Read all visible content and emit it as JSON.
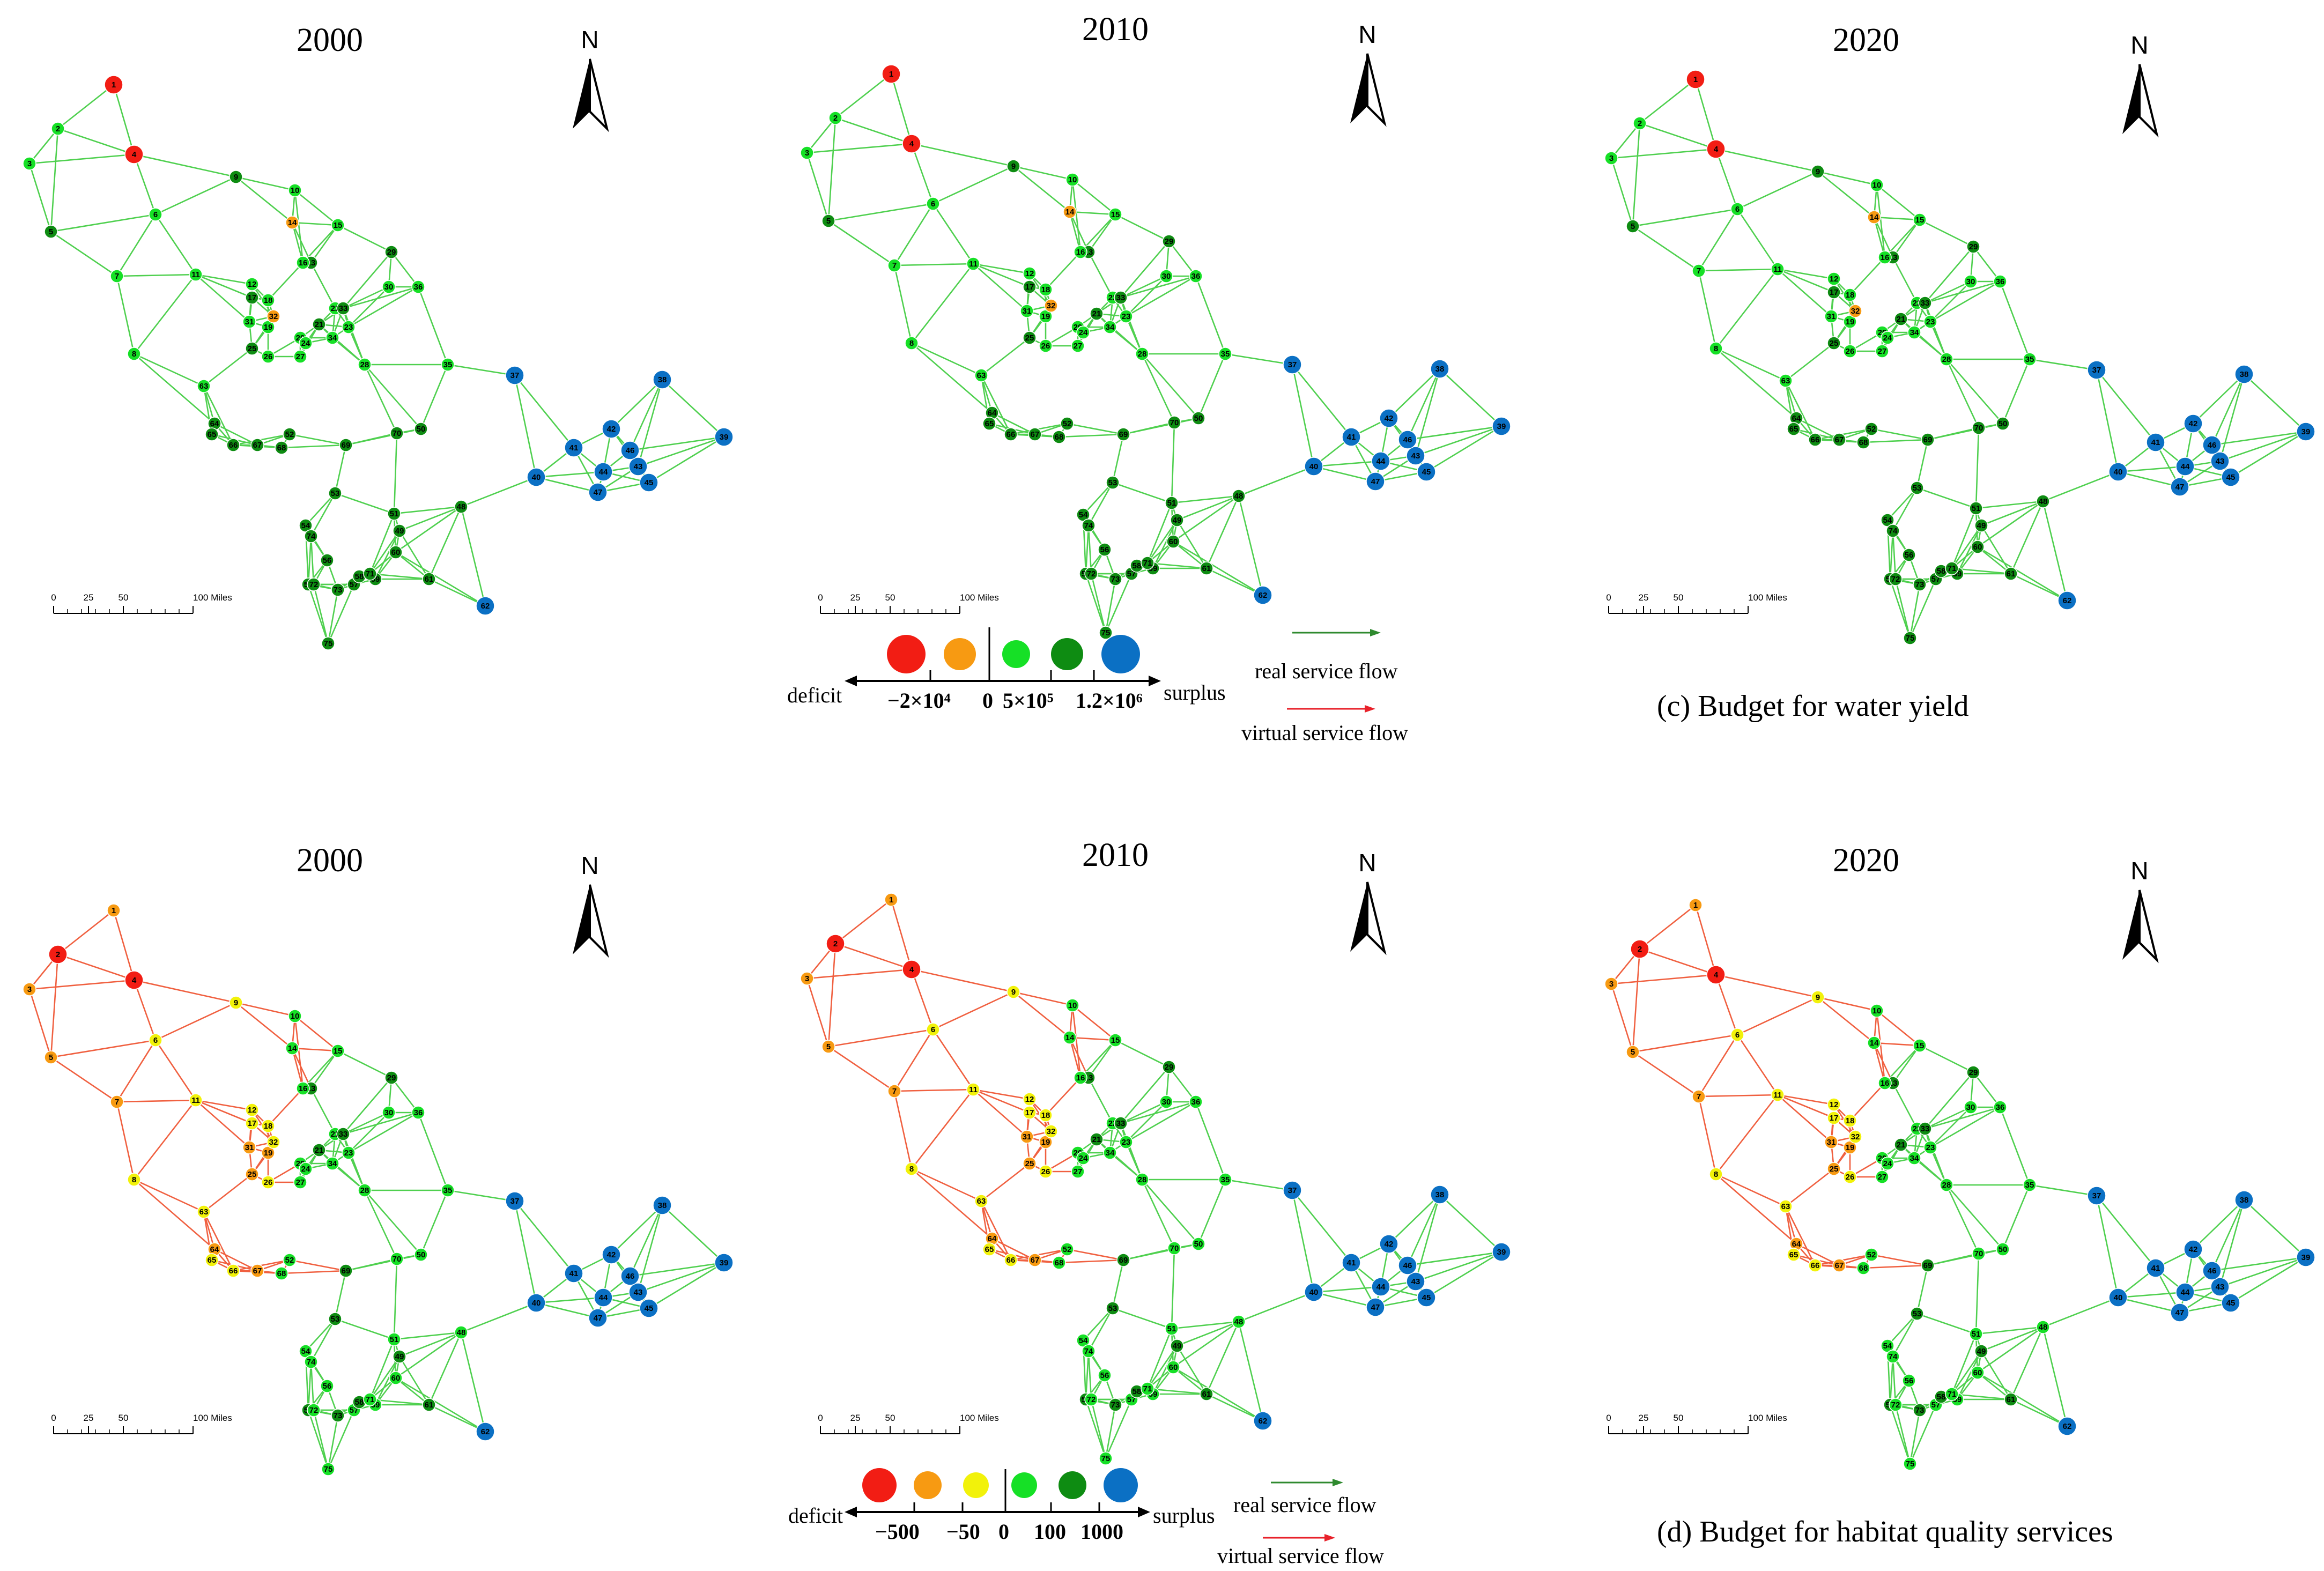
{
  "figure": {
    "water": {
      "caption": "(c)  Budget for water yield",
      "panels": [
        {
          "year": "2000"
        },
        {
          "year": "2010"
        },
        {
          "year": "2020"
        }
      ],
      "legend": {
        "deficit": "deficit",
        "surplus": "surplus",
        "ticks": [
          "−2×10⁴",
          "0",
          "5×10⁵",
          "1.2×10⁶"
        ],
        "real_flow": "real service flow",
        "virtual_flow": "virtual service flow",
        "classes": [
          "#f21d14",
          "#f79a12",
          "#16e026",
          "#0e8c12",
          "#0b70c4"
        ]
      }
    },
    "habitat": {
      "caption": "(d)  Budget for  habitat quality services",
      "panels": [
        {
          "year": "2000"
        },
        {
          "year": "2010"
        },
        {
          "year": "2020"
        }
      ],
      "legend": {
        "deficit": "deficit",
        "surplus": "surplus",
        "ticks": [
          "−500",
          "−50",
          "0",
          "100",
          "1000"
        ],
        "real_flow": "real service flow",
        "virtual_flow": "virtual service flow",
        "classes": [
          "#f21d14",
          "#f79a12",
          "#f2f20a",
          "#16e026",
          "#0e8c12",
          "#0b70c4"
        ]
      }
    },
    "north_label": "N",
    "scale_bar": {
      "labels": [
        "0",
        "25",
        "50",
        "100 Miles"
      ]
    },
    "colors": {
      "real_flow": "#2f8a2f",
      "virtual_flow": "#e8212a",
      "edge_real": "#4fd04f",
      "edge_virtual": "#f06040"
    }
  }
}
